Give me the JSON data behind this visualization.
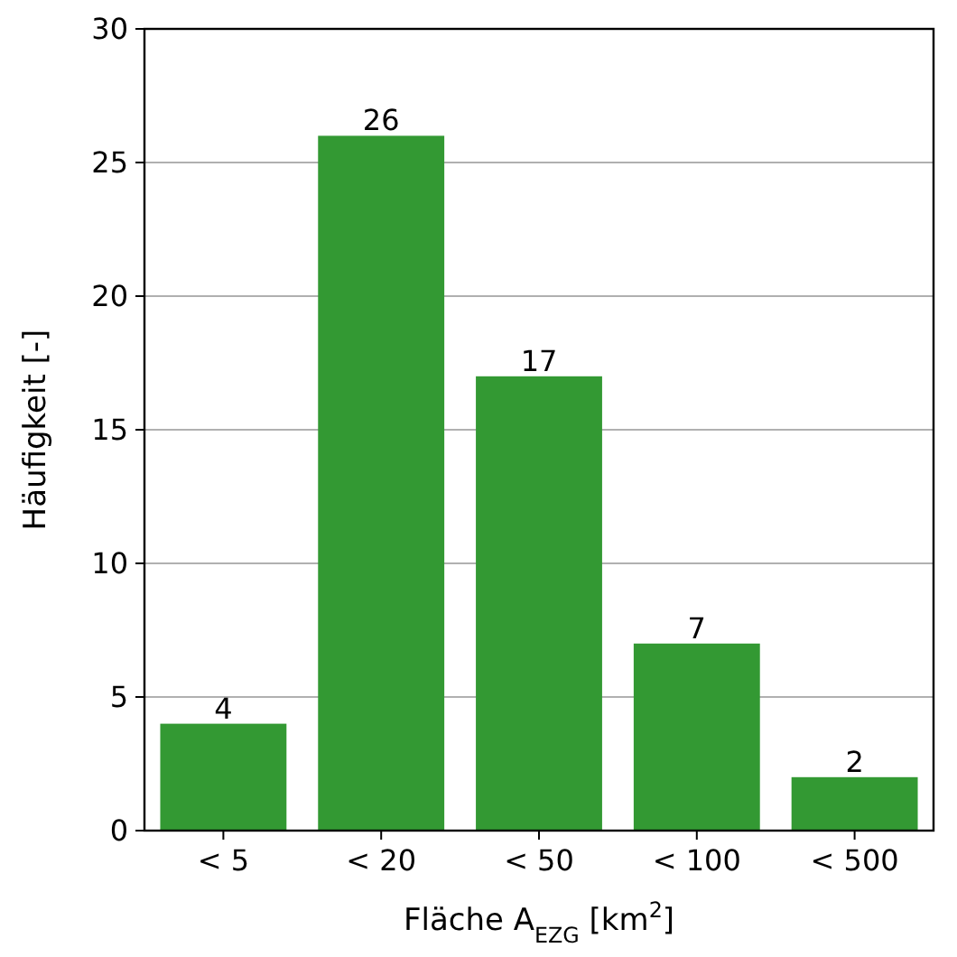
{
  "chart_data": {
    "type": "bar",
    "xlabel": "Fläche A$_{EZG}$ [km$^{2}$]",
    "ylabel": "Häufigkeit [-]",
    "categories": [
      "< 5",
      "< 20",
      "< 50",
      "< 100",
      "< 500"
    ],
    "values": [
      4,
      26,
      17,
      7,
      2
    ],
    "color": "#339933",
    "ylim": [
      0,
      30
    ],
    "yticks": [
      0,
      5,
      10,
      15,
      20,
      25,
      30
    ],
    "grid": "y",
    "data_labels": true
  }
}
